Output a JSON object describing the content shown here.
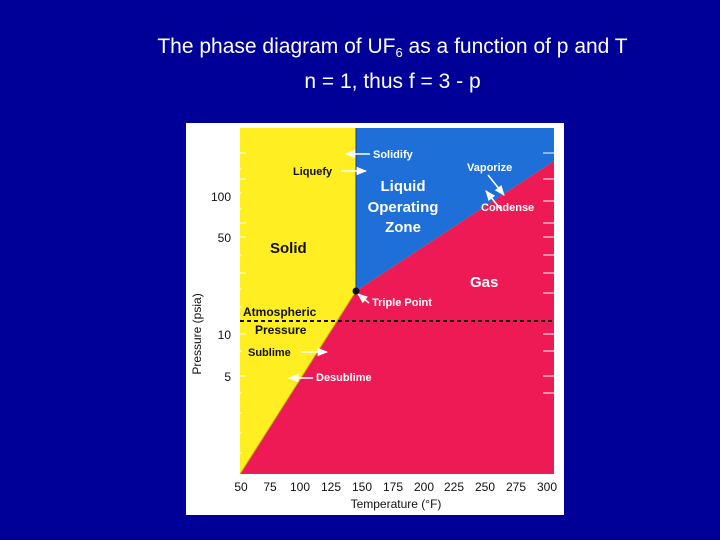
{
  "header": {
    "title_prefix": "The phase diagram of UF",
    "title_subscript": "6",
    "title_suffix": " as a function of p and T",
    "subtitle": "n = 1, thus f = 3 - p"
  },
  "colors": {
    "background": "#000099",
    "solid": "#ffee22",
    "liquid": "#1f6fd8",
    "gas": "#ee1a55",
    "text": "#ffffff",
    "label_dark": "#111111"
  },
  "diagram": {
    "regions": {
      "solid": "Solid",
      "liquid_line1": "Liquid",
      "liquid_line2": "Operating",
      "liquid_line3": "Zone",
      "gas": "Gas"
    },
    "transitions": {
      "solidify": "Solidify",
      "liquefy": "Liquefy",
      "vaporize": "Vaporize",
      "condense": "Condense",
      "sublime": "Sublime",
      "desublime": "Desublime"
    },
    "triple_point": "Triple Point",
    "atmospheric_line1": "Atmospheric",
    "atmospheric_line2": "Pressure",
    "xlabel": "Temperature (°F)",
    "ylabel": "Pressure (psia)",
    "x_ticks": [
      "50",
      "75",
      "100",
      "125",
      "150",
      "175",
      "200",
      "225",
      "250",
      "275",
      "300"
    ],
    "y_ticks": [
      "100",
      "50",
      "10",
      "5"
    ]
  }
}
